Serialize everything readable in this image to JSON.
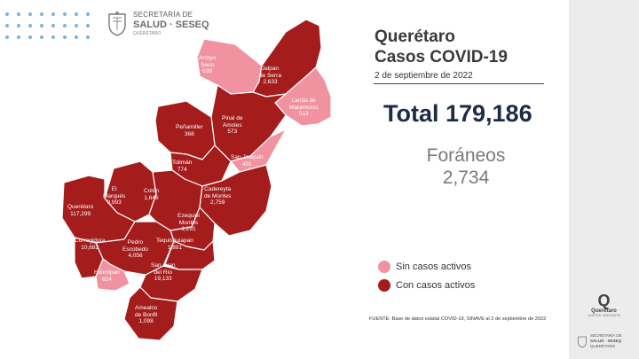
{
  "header": {
    "logo_line1": "SECRETARÍA DE",
    "logo_line2": "SALUD · SESEQ",
    "logo_line3": "QUERÉTARO"
  },
  "title_line1": "Querétaro",
  "title_line2": "Casos COVID-19",
  "date": "2 de septiembre de 2022",
  "total": "Total 179,186",
  "foraneos_label": "Foráneos",
  "foraneos_value": "2,734",
  "legend": {
    "sin_label": "Sin casos activos",
    "con_label": "Con casos activos",
    "sin_color": "#f0929f",
    "con_color": "#a51c1c"
  },
  "municipalities": [
    {
      "name": "Arroyo Seco",
      "line1": "Arroyo",
      "line2": "Seco",
      "cases": "639",
      "status": "con"
    },
    {
      "name": "Jalpan de Serra",
      "line1": "Jalpan",
      "line2": "de Serra",
      "cases": "2,633",
      "status": "con"
    },
    {
      "name": "Landa de Matamoros",
      "line1": "Landa de",
      "line2": "Matamoros",
      "cases": "512",
      "status": "sin"
    },
    {
      "name": "Pinal de Amoles",
      "line1": "Pinal de",
      "line2": "Amoles",
      "cases": "573",
      "status": "con"
    },
    {
      "name": "Peñamiller",
      "line1": "Peñamiller",
      "line2": "",
      "cases": "368",
      "status": "con"
    },
    {
      "name": "San Joaquín",
      "line1": "San Joaquín",
      "line2": "",
      "cases": "491",
      "status": "sin"
    },
    {
      "name": "Tolimán",
      "line1": "Tolimán",
      "line2": "",
      "cases": "774",
      "status": "con"
    },
    {
      "name": "El Marqués",
      "line1": "El",
      "line2": "Marqués",
      "cases": "9,993",
      "status": "con"
    },
    {
      "name": "Colón",
      "line1": "Colón",
      "line2": "",
      "cases": "1,646",
      "status": "con"
    },
    {
      "name": "Cadereyta de Montes",
      "line1": "Cadereyta",
      "line2": "de Montes",
      "cases": "2,759",
      "status": "con"
    },
    {
      "name": "Querétaro",
      "line1": "Querétaro",
      "line2": "",
      "cases": "117,299",
      "status": "con"
    },
    {
      "name": "Ezequiel Montes",
      "line1": "Ezequiel",
      "line2": "Montes",
      "cases": "1,291",
      "status": "con"
    },
    {
      "name": "Corregidora",
      "line1": "Corregidora",
      "line2": "",
      "cases": "10,682",
      "status": "con"
    },
    {
      "name": "Pedro Escobedo",
      "line1": "Pedro",
      "line2": "Escobedo",
      "cases": "4,056",
      "status": "con"
    },
    {
      "name": "Tequisquiapan",
      "line1": "Tequisquiapan",
      "line2": "",
      "cases": "1,881",
      "status": "con"
    },
    {
      "name": "Huimilpan",
      "line1": "Huimilpan",
      "line2": "",
      "cases": "624",
      "status": "sin"
    },
    {
      "name": "San Juan del Río",
      "line1": "San Juan",
      "line2": "del Río",
      "cases": "19,133",
      "status": "con"
    },
    {
      "name": "Amealco de Bonfil",
      "line1": "Amealco",
      "line2": "de Bonfil",
      "cases": "1,098",
      "status": "con"
    }
  ],
  "source": "FUENTE: Base de datos estatal COVID-19, SINAVE al 2 de septiembre de 2022",
  "sidebar": {
    "q_mark": "Q",
    "brand": "Querétaro",
    "tagline": "JUNTOS, ADELANTE",
    "seseq_line1": "SECRETARÍA DE",
    "seseq_line2": "SALUD · SESEQ",
    "seseq_line3": "QUERÉTARO"
  }
}
